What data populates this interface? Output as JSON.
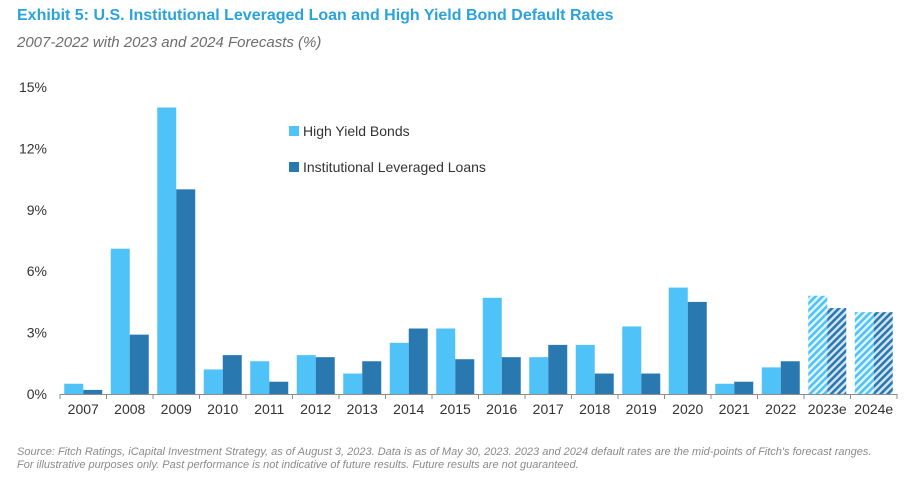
{
  "header": {
    "title": "Exhibit 5: U.S. Institutional Leveraged Loan and High Yield Bond Default Rates",
    "subtitle": "2007-2022 with 2023 and 2024 Forecasts (%)"
  },
  "footnote": {
    "line1": "Source: Fitch Ratings, iCapital Investment Strategy, as of August 3, 2023. Data is as of May 30, 2023. 2023 and 2024 default rates are the mid-points of Fitch's forecast ranges.",
    "line2": "For illustrative purposes only. Past performance is not indicative of future results. Future results are not guaranteed."
  },
  "colors": {
    "high_yield": "#4fc3f7",
    "leveraged_loans": "#2a78b0",
    "axis": "#8c8c8c",
    "text": "#333333"
  },
  "chart_data": {
    "type": "bar",
    "title": "Exhibit 5: U.S. Institutional Leveraged Loan and High Yield Bond Default Rates",
    "subtitle": "2007-2022 with 2023 and 2024 Forecasts (%)",
    "categories": [
      "2007",
      "2008",
      "2009",
      "2010",
      "2011",
      "2012",
      "2013",
      "2014",
      "2015",
      "2016",
      "2017",
      "2018",
      "2019",
      "2020",
      "2021",
      "2022",
      "2023e",
      "2024e"
    ],
    "forecast_categories": [
      "2023e",
      "2024e"
    ],
    "series": [
      {
        "name": "High Yield Bonds",
        "values": [
          0.5,
          7.1,
          14.0,
          1.2,
          1.6,
          1.9,
          1.0,
          2.5,
          3.2,
          4.7,
          1.8,
          2.4,
          3.3,
          5.2,
          0.5,
          1.3,
          4.8,
          4.0
        ]
      },
      {
        "name": "Institutional Leveraged Loans",
        "values": [
          0.2,
          2.9,
          10.0,
          1.9,
          0.6,
          1.8,
          1.6,
          3.2,
          1.7,
          1.8,
          2.4,
          1.0,
          1.0,
          4.5,
          0.6,
          1.6,
          4.2,
          4.0
        ]
      }
    ],
    "yticks": [
      0,
      3,
      6,
      9,
      12,
      15
    ],
    "ytick_labels": [
      "0%",
      "3%",
      "6%",
      "9%",
      "12%",
      "15%"
    ],
    "ylim": [
      0,
      15
    ],
    "xlabel": "",
    "ylabel": "",
    "grid": false,
    "legend_position": "top-center"
  }
}
